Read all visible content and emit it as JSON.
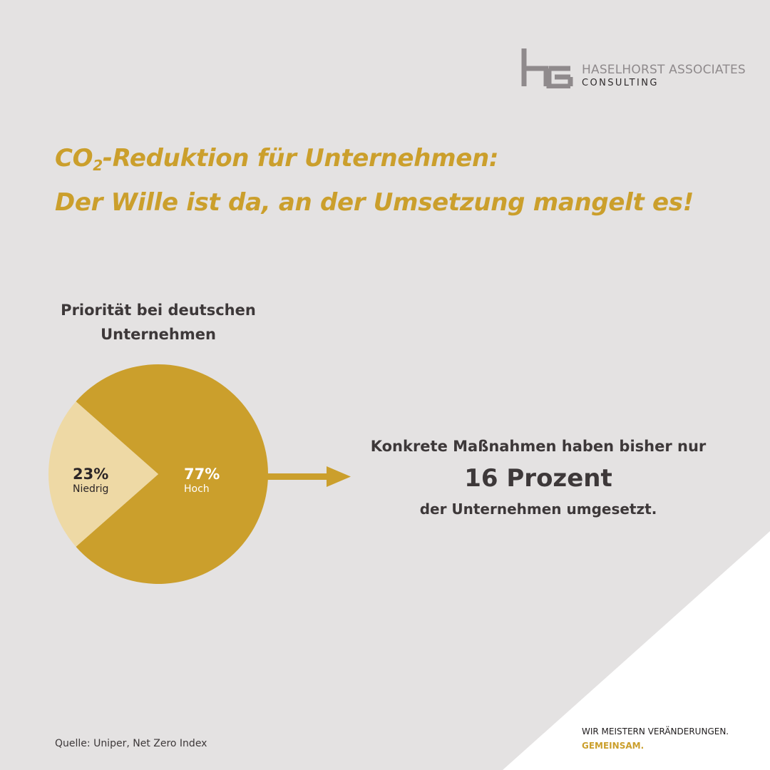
{
  "colors": {
    "background": "#e4e2e2",
    "accent": "#cb9f2c",
    "accent_light": "#eed9a5",
    "text_dark": "#3d3839",
    "logo_gray": "#8f8a8c"
  },
  "brand": {
    "logo_icon": "hc-monogram-icon",
    "name": "HASELHORST ASSOCIATES",
    "sub": "CONSULTING"
  },
  "headline": {
    "line1_prefix": "CO",
    "line1_subscript": "2",
    "line1_suffix": "-Reduktion für Unternehmen:",
    "line2": "Der Wille ist da, an der Umsetzung mangelt es!"
  },
  "chart_data": {
    "type": "pie",
    "title": "Priorität bei deutschen Unternehmen",
    "slices": [
      {
        "label": "Hoch",
        "value": 77,
        "value_label": "77%",
        "color": "#cb9f2c"
      },
      {
        "label": "Niedrig",
        "value": 23,
        "value_label": "23%",
        "color": "#eed9a5"
      }
    ]
  },
  "callout": {
    "line1": "Konkrete Maßnahmen haben bisher nur",
    "big": "16 Prozent",
    "line3": "der Unternehmen umgesetzt."
  },
  "source": "Quelle: Uniper, Net Zero Index",
  "tagline": {
    "line1": "WIR MEISTERN VERÄNDERUNGEN.",
    "line2": "GEMEINSAM."
  }
}
